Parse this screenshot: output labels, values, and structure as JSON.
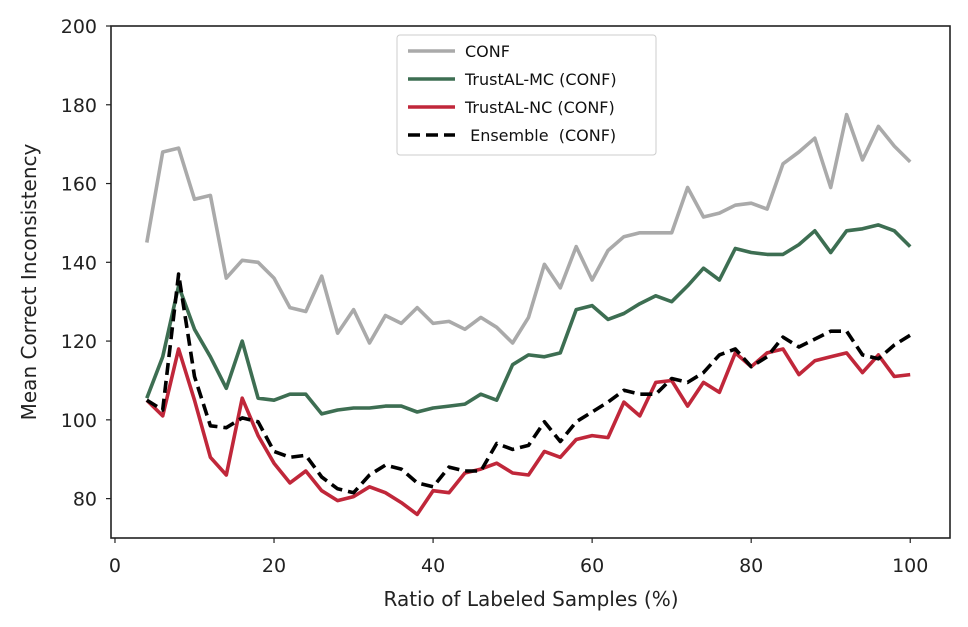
{
  "chart_data": {
    "type": "line",
    "title": "",
    "xlabel": "Ratio of Labeled Samples (%)",
    "ylabel": "Mean Correct Inconsistency",
    "xlim": [
      -0.5,
      105
    ],
    "ylim": [
      70,
      200
    ],
    "xticks": [
      0,
      20,
      40,
      60,
      80,
      100
    ],
    "yticks": [
      80,
      100,
      120,
      140,
      160,
      180,
      200
    ],
    "grid": false,
    "legend_position": "top-center",
    "x": [
      4,
      6,
      8,
      10,
      12,
      14,
      16,
      18,
      20,
      22,
      24,
      26,
      28,
      30,
      32,
      34,
      36,
      38,
      40,
      42,
      44,
      46,
      48,
      50,
      52,
      54,
      56,
      58,
      60,
      62,
      64,
      66,
      68,
      70,
      72,
      74,
      76,
      78,
      80,
      82,
      84,
      86,
      88,
      90,
      92,
      94,
      96,
      98,
      100
    ],
    "series": [
      {
        "name": "CONF",
        "label": "CONF",
        "color": "#aaaaaa",
        "style": "solid",
        "values": [
          145,
          168,
          169,
          156,
          157,
          136,
          140.5,
          140,
          136,
          128.5,
          127.5,
          136.5,
          122,
          128,
          119.5,
          126.5,
          124.5,
          128.5,
          124.5,
          125,
          123,
          126,
          123.5,
          119.5,
          126,
          139.5,
          133.5,
          144,
          135.5,
          143,
          146.5,
          147.5,
          147.5,
          147.5,
          159,
          151.5,
          152.5,
          154.5,
          155,
          153.5,
          165,
          168,
          171.5,
          159,
          177.5,
          166,
          174.5,
          169.5,
          165.5
        ]
      },
      {
        "name": "TrustAL-MC (CONF)",
        "label": "TrustAL-MC (CONF)",
        "color": "#3d6e52",
        "style": "solid",
        "values": [
          105.5,
          116,
          134,
          123,
          116,
          108,
          120,
          105.5,
          105,
          106.5,
          106.5,
          101.5,
          102.5,
          103,
          103,
          103.5,
          103.5,
          102,
          103,
          103.5,
          104,
          106.5,
          105,
          114,
          116.5,
          116,
          117,
          128,
          129,
          125.5,
          127,
          129.5,
          131.5,
          130,
          134,
          138.5,
          135.5,
          143.5,
          142.5,
          142,
          142,
          144.5,
          148,
          142.5,
          148,
          148.5,
          149.5,
          148,
          144
        ]
      },
      {
        "name": "TrustAL-NC (CONF)",
        "label": "TrustAL-NC (CONF)",
        "color": "#c0273a",
        "style": "solid",
        "values": [
          105,
          101,
          118,
          105,
          90.5,
          86,
          105.5,
          96,
          89,
          84,
          87,
          82,
          79.5,
          80.5,
          83,
          81.5,
          79,
          76,
          82,
          81.5,
          86.5,
          87.5,
          89,
          86.5,
          86,
          92,
          90.5,
          95,
          96,
          95.5,
          104.5,
          101,
          109.5,
          110,
          103.5,
          109.5,
          107,
          117,
          113.5,
          117,
          118,
          111.5,
          115,
          116,
          117,
          112,
          116.5,
          111,
          111.5
        ]
      },
      {
        "name": "Ensemble (CONF)",
        "label": " Ensemble  (CONF)",
        "color": "#000000",
        "style": "dashed",
        "values": [
          105,
          102.5,
          137,
          111,
          98.5,
          98,
          100.5,
          99.5,
          92,
          90.5,
          91,
          85.5,
          82.5,
          81.5,
          86,
          88.5,
          87.5,
          84,
          83,
          88,
          87,
          87,
          94,
          92.5,
          93.5,
          99.5,
          94.5,
          99.5,
          102,
          104.5,
          107.5,
          106.5,
          106.5,
          110.5,
          109.5,
          112,
          116.5,
          118,
          113.5,
          116,
          121,
          118.5,
          120.5,
          122.5,
          122.5,
          116.5,
          115.5,
          119,
          121.5
        ]
      }
    ]
  }
}
